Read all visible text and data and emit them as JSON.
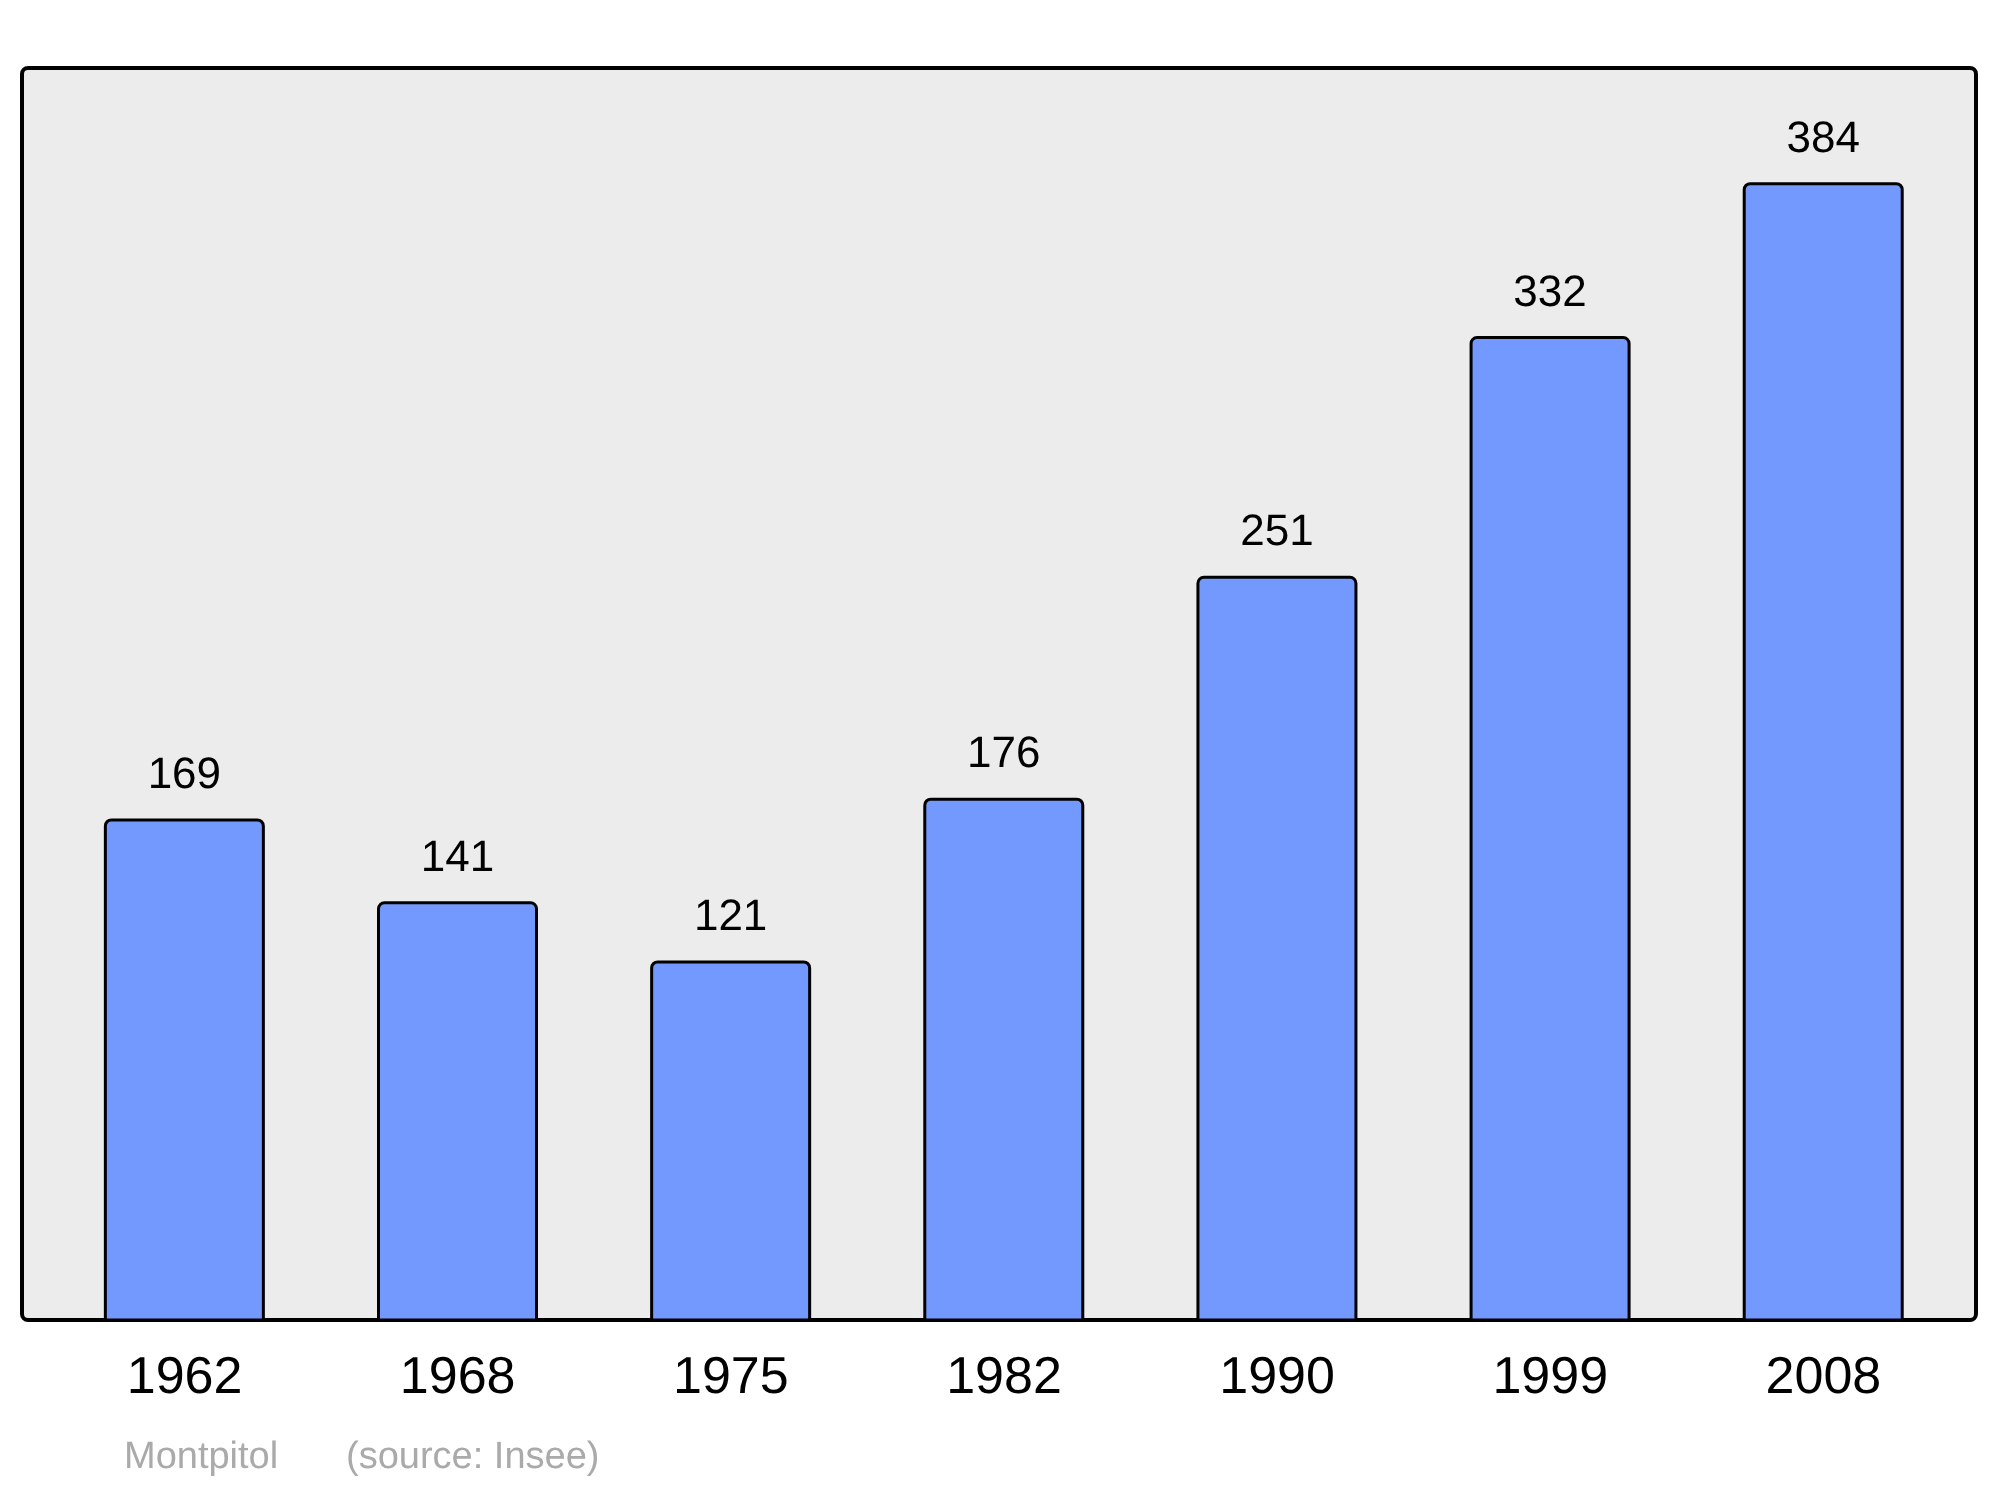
{
  "chart_data": {
    "type": "bar",
    "categories": [
      "1962",
      "1968",
      "1975",
      "1982",
      "1990",
      "1999",
      "2008"
    ],
    "values": [
      169,
      141,
      121,
      176,
      251,
      332,
      384
    ],
    "color": "#7399ff",
    "data_labels": true,
    "annotations": [
      "Montpitol",
      "(source: Insee)"
    ]
  }
}
